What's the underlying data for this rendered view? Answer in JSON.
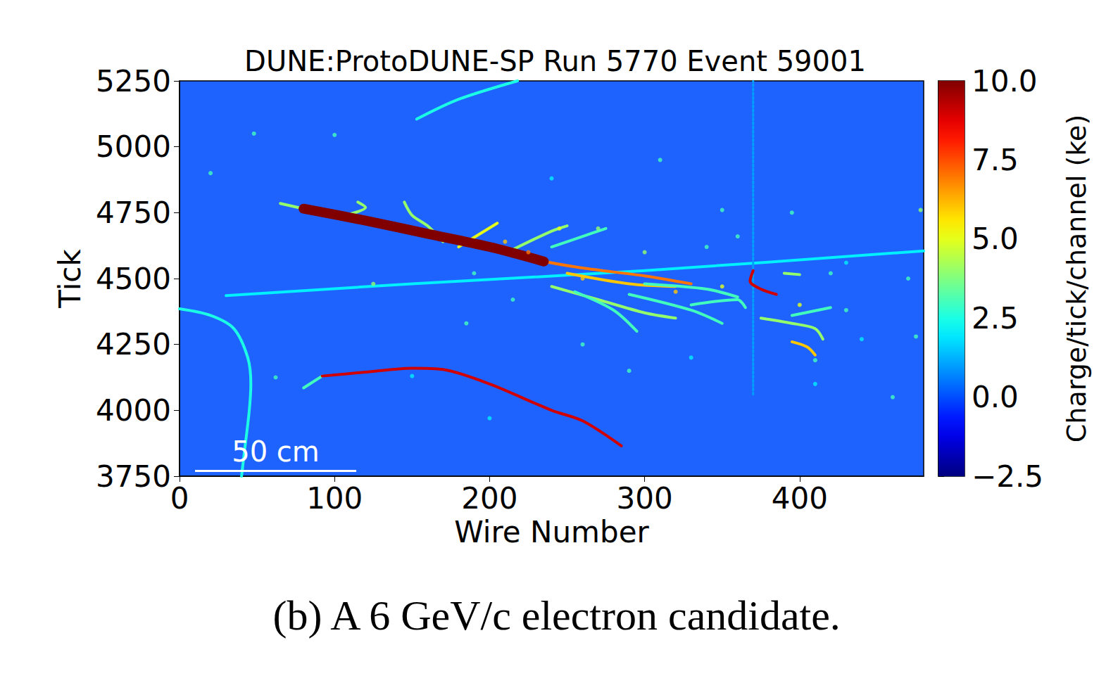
{
  "chart_data": {
    "type": "event_display",
    "title": "DUNE:ProtoDUNE-SP Run 5770 Event 59001",
    "x_label": "Wire Number",
    "y_label": "Tick",
    "xlim": [
      0,
      480
    ],
    "xticks": [
      0,
      100,
      200,
      300,
      400
    ],
    "ylim": [
      3750,
      5250
    ],
    "yticks": [
      3750,
      4000,
      4250,
      4500,
      4750,
      5000,
      5250
    ],
    "colorbar": {
      "label": "Charge/tick/channel (ke)",
      "range": [
        -2.5,
        10
      ],
      "ticks": [
        {
          "value": -2.5,
          "label": "−2.5"
        },
        {
          "value": 0,
          "label": "0.0"
        },
        {
          "value": 2.5,
          "label": "2.5"
        },
        {
          "value": 5,
          "label": "5.0"
        },
        {
          "value": 7.5,
          "label": "7.5"
        },
        {
          "value": 10,
          "label": "10.0"
        }
      ]
    },
    "scale_bar": {
      "text": "50 cm",
      "x": [
        10,
        114
      ],
      "y": 3770
    },
    "caption": "(b) A 6 GeV/c electron candidate.",
    "tracks": [
      {
        "charge": 2.5,
        "points": [
          [
            153,
            5105
          ],
          [
            180,
            5180
          ],
          [
            218,
            5250
          ]
        ]
      },
      {
        "charge": 2,
        "points": [
          [
            30,
            4435
          ],
          [
            150,
            4480
          ],
          [
            300,
            4530
          ],
          [
            480,
            4605
          ]
        ]
      },
      {
        "charge": 3,
        "points": [
          [
            80,
            4085
          ],
          [
            92,
            4130
          ]
        ]
      },
      {
        "charge": 9,
        "points": [
          [
            92,
            4130
          ],
          [
            120,
            4145
          ],
          [
            150,
            4160
          ],
          [
            170,
            4155
          ],
          [
            200,
            4100
          ],
          [
            240,
            4000
          ],
          [
            260,
            3960
          ],
          [
            285,
            3865
          ]
        ]
      },
      {
        "charge": 2.5,
        "points": [
          [
            0,
            4385
          ],
          [
            20,
            4360
          ],
          [
            35,
            4310
          ],
          [
            44,
            4200
          ],
          [
            46,
            4100
          ],
          [
            45,
            4000
          ],
          [
            42,
            3850
          ],
          [
            40,
            3750
          ]
        ]
      },
      {
        "charge": 1,
        "line_style": "dotted",
        "points": [
          [
            370,
            4060
          ],
          [
            370,
            5250
          ]
        ]
      },
      {
        "charge": 4,
        "points": [
          [
            65,
            4785
          ],
          [
            80,
            4765
          ]
        ]
      },
      {
        "charge": 4,
        "points": [
          [
            170,
            4640
          ],
          [
            160,
            4700
          ],
          [
            150,
            4740
          ],
          [
            145,
            4790
          ]
        ]
      },
      {
        "charge": 4,
        "points": [
          [
            100,
            4730
          ],
          [
            120,
            4770
          ],
          [
            115,
            4790
          ]
        ]
      },
      {
        "charge": 5,
        "points": [
          [
            180,
            4620
          ],
          [
            205,
            4710
          ]
        ]
      },
      {
        "charge": 4,
        "points": [
          [
            215,
            4610
          ],
          [
            240,
            4680
          ],
          [
            250,
            4700
          ]
        ]
      },
      {
        "charge": 3,
        "points": [
          [
            240,
            4620
          ],
          [
            260,
            4660
          ],
          [
            275,
            4690
          ]
        ]
      },
      {
        "charge": 7,
        "points": [
          [
            230,
            4570
          ],
          [
            260,
            4540
          ],
          [
            300,
            4510
          ],
          [
            330,
            4480
          ]
        ]
      },
      {
        "charge": 6,
        "points": [
          [
            250,
            4520
          ],
          [
            290,
            4480
          ],
          [
            320,
            4470
          ]
        ]
      },
      {
        "charge": 4,
        "points": [
          [
            240,
            4470
          ],
          [
            270,
            4420
          ],
          [
            300,
            4370
          ],
          [
            320,
            4350
          ]
        ]
      },
      {
        "charge": 3,
        "points": [
          [
            255,
            4450
          ],
          [
            280,
            4380
          ],
          [
            295,
            4300
          ]
        ]
      },
      {
        "charge": 3,
        "points": [
          [
            290,
            4440
          ],
          [
            330,
            4380
          ],
          [
            350,
            4330
          ]
        ]
      },
      {
        "charge": 3,
        "points": [
          [
            300,
            4480
          ],
          [
            340,
            4460
          ],
          [
            360,
            4430
          ]
        ]
      },
      {
        "charge": 3,
        "points": [
          [
            330,
            4400
          ],
          [
            360,
            4420
          ],
          [
            365,
            4390
          ]
        ]
      },
      {
        "charge": 9,
        "points": [
          [
            370,
            4530
          ],
          [
            368,
            4490
          ],
          [
            375,
            4460
          ],
          [
            385,
            4440
          ]
        ]
      },
      {
        "charge": 4,
        "points": [
          [
            375,
            4350
          ],
          [
            395,
            4330
          ],
          [
            410,
            4310
          ],
          [
            415,
            4270
          ]
        ]
      },
      {
        "charge": 3,
        "points": [
          [
            395,
            4360
          ],
          [
            420,
            4390
          ]
        ]
      },
      {
        "charge": 6,
        "points": [
          [
            395,
            4260
          ],
          [
            405,
            4240
          ],
          [
            410,
            4210
          ]
        ]
      },
      {
        "charge": 4,
        "points": [
          [
            390,
            4520
          ],
          [
            400,
            4515
          ]
        ]
      },
      {
        "charge": 10,
        "points": [
          [
            80,
            4765
          ],
          [
            120,
            4720
          ],
          [
            160,
            4670
          ],
          [
            200,
            4620
          ],
          [
            235,
            4565
          ]
        ]
      }
    ],
    "hits": [
      [
        20,
        4900,
        3
      ],
      [
        48,
        5050,
        3
      ],
      [
        100,
        5045,
        3
      ],
      [
        185,
        4330,
        3
      ],
      [
        150,
        4130,
        2
      ],
      [
        62,
        4125,
        3
      ],
      [
        310,
        4950,
        3
      ],
      [
        240,
        4880,
        2
      ],
      [
        270,
        4690,
        4
      ],
      [
        350,
        4760,
        3
      ],
      [
        360,
        4660,
        3
      ],
      [
        340,
        4620,
        3
      ],
      [
        395,
        4750,
        3
      ],
      [
        420,
        4520,
        3
      ],
      [
        430,
        4560,
        2
      ],
      [
        440,
        4270,
        2
      ],
      [
        460,
        4050,
        3
      ],
      [
        470,
        4500,
        3
      ],
      [
        475,
        4280,
        3
      ],
      [
        478,
        4760,
        4
      ],
      [
        125,
        4480,
        4
      ],
      [
        200,
        3970,
        2
      ],
      [
        260,
        4250,
        3
      ],
      [
        330,
        4200,
        2
      ],
      [
        290,
        4150,
        3
      ],
      [
        400,
        4400,
        5
      ],
      [
        410,
        4190,
        3
      ],
      [
        215,
        4420,
        3
      ],
      [
        245,
        4690,
        5
      ],
      [
        300,
        4600,
        4
      ],
      [
        260,
        4500,
        6
      ],
      [
        190,
        4520,
        3
      ],
      [
        410,
        4100,
        2
      ],
      [
        430,
        4380,
        3
      ],
      [
        320,
        4450,
        6
      ],
      [
        350,
        4470,
        5
      ],
      [
        210,
        4640,
        6
      ],
      [
        225,
        4600,
        7
      ]
    ]
  }
}
